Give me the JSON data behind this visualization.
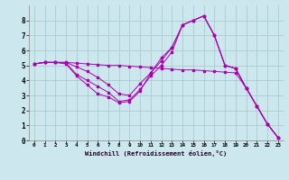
{
  "xlabel": "Windchill (Refroidissement éolien,°C)",
  "bg_color": "#cce8ee",
  "line_color": "#aa00aa",
  "grid_color": "#aacccc",
  "xlim": [
    -0.5,
    23.5
  ],
  "ylim": [
    0,
    9
  ],
  "xticks": [
    0,
    1,
    2,
    3,
    4,
    5,
    6,
    7,
    8,
    9,
    10,
    11,
    12,
    13,
    14,
    15,
    16,
    17,
    18,
    19,
    20,
    21,
    22,
    23
  ],
  "yticks": [
    0,
    1,
    2,
    3,
    4,
    5,
    6,
    7,
    8
  ],
  "line1": [
    5.1,
    5.2,
    5.2,
    5.2,
    5.15,
    5.1,
    5.05,
    5.0,
    5.0,
    4.95,
    4.9,
    4.85,
    4.8,
    4.75,
    4.7,
    4.7,
    4.65,
    4.6,
    4.55,
    4.5,
    3.5,
    2.3,
    1.1,
    0.2
  ],
  "line2": [
    5.1,
    5.2,
    5.2,
    5.2,
    4.9,
    4.6,
    4.2,
    3.7,
    3.1,
    3.0,
    3.8,
    4.5,
    5.3,
    6.2,
    7.7,
    8.0,
    8.3,
    7.0,
    5.0,
    4.8,
    3.5,
    2.3,
    1.1,
    0.2
  ],
  "line3": [
    5.1,
    5.2,
    5.2,
    5.15,
    4.4,
    4.0,
    3.6,
    3.2,
    2.6,
    2.7,
    3.4,
    4.3,
    5.0,
    5.9,
    7.7,
    8.0,
    8.3,
    7.0,
    5.0,
    4.8,
    3.5,
    2.3,
    1.1,
    0.2
  ],
  "line4": [
    5.1,
    5.2,
    5.2,
    5.1,
    4.3,
    3.7,
    3.1,
    2.9,
    2.5,
    2.6,
    3.3,
    4.5,
    5.5,
    6.2,
    7.7,
    8.0,
    8.3,
    7.0,
    5.0,
    4.8,
    3.5,
    2.3,
    1.1,
    0.2
  ]
}
